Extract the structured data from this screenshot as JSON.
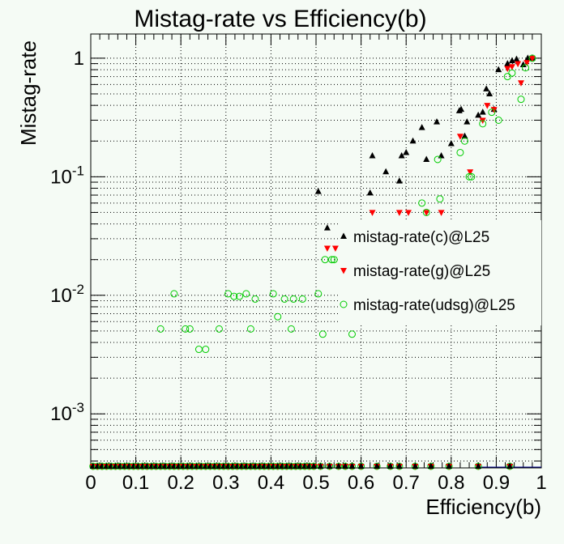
{
  "chart_data": {
    "type": "scatter",
    "title": "Mistag-rate vs Efficiency(b)",
    "xlabel": "Efficiency(b)",
    "ylabel": "Mistag-rate",
    "xlim": [
      0,
      1
    ],
    "ylim": [
      0.00035,
      1.6
    ],
    "yscale": "log",
    "grid": true,
    "legend_position": "right-middle",
    "x_ticks": [
      "0",
      "0.1",
      "0.2",
      "0.3",
      "0.4",
      "0.5",
      "0.6",
      "0.7",
      "0.8",
      "0.9",
      "1"
    ],
    "x_tick_values": [
      0,
      0.1,
      0.2,
      0.3,
      0.4,
      0.5,
      0.6,
      0.7,
      0.8,
      0.9,
      1
    ],
    "y_ticks": [
      {
        "value": 1,
        "base": "1",
        "exp": ""
      },
      {
        "value": 0.1,
        "base": "10",
        "exp": "-1"
      },
      {
        "value": 0.01,
        "base": "10",
        "exp": "-2"
      },
      {
        "value": 0.001,
        "base": "10",
        "exp": "-3"
      }
    ],
    "series": [
      {
        "name": "mistag-rate(c)@L25",
        "marker": "triangle-up",
        "color": "#000000",
        "x": [
          0.505,
          0.525,
          0.562,
          0.62,
          0.625,
          0.655,
          0.685,
          0.69,
          0.7,
          0.715,
          0.735,
          0.745,
          0.768,
          0.778,
          0.8,
          0.818,
          0.822,
          0.83,
          0.835,
          0.86,
          0.87,
          0.878,
          0.885,
          0.895,
          0.905,
          0.925,
          0.935,
          0.945,
          0.96,
          0.97,
          0.98
        ],
        "y": [
          0.075,
          0.037,
          0.032,
          0.073,
          0.15,
          0.11,
          0.092,
          0.15,
          0.16,
          0.2,
          0.26,
          0.14,
          0.29,
          0.15,
          0.19,
          0.36,
          0.37,
          0.22,
          0.29,
          0.33,
          0.35,
          0.55,
          0.5,
          0.37,
          0.8,
          0.9,
          0.95,
          0.98,
          0.88,
          1.0,
          1.0
        ]
      },
      {
        "name": "mistag-rate(g)@L25",
        "marker": "triangle-down",
        "color": "#ff0000",
        "x": [
          0.525,
          0.543,
          0.625,
          0.685,
          0.705,
          0.745,
          0.778,
          0.82,
          0.842,
          0.87,
          0.88,
          0.895,
          0.925,
          0.935,
          0.948,
          0.955,
          0.968,
          0.98
        ],
        "y": [
          0.025,
          0.025,
          0.05,
          0.05,
          0.05,
          0.05,
          0.05,
          0.22,
          0.11,
          0.3,
          0.4,
          0.37,
          0.82,
          0.85,
          0.9,
          0.62,
          0.92,
          1.0
        ]
      },
      {
        "name": "mistag-rate(udsg)@L25",
        "marker": "circle-open",
        "color": "#00cc00",
        "x": [
          0.155,
          0.185,
          0.21,
          0.22,
          0.24,
          0.255,
          0.285,
          0.305,
          0.318,
          0.33,
          0.345,
          0.355,
          0.365,
          0.405,
          0.415,
          0.43,
          0.445,
          0.45,
          0.47,
          0.505,
          0.515,
          0.52,
          0.535,
          0.54,
          0.58,
          0.735,
          0.745,
          0.77,
          0.775,
          0.82,
          0.83,
          0.84,
          0.845,
          0.87,
          0.89,
          0.905,
          0.925,
          0.935,
          0.955,
          0.965,
          0.98
        ],
        "y": [
          0.0052,
          0.0103,
          0.0052,
          0.0052,
          0.0035,
          0.0035,
          0.0052,
          0.0103,
          0.0098,
          0.0098,
          0.0103,
          0.0052,
          0.0093,
          0.0103,
          0.0066,
          0.0093,
          0.0052,
          0.0093,
          0.0093,
          0.0103,
          0.0047,
          0.02,
          0.02,
          0.02,
          0.0047,
          0.06,
          0.05,
          0.14,
          0.065,
          0.16,
          0.2,
          0.1,
          0.1,
          0.28,
          0.35,
          0.3,
          0.7,
          0.75,
          0.45,
          0.83,
          1.0
        ]
      }
    ],
    "baseline_markers_x": [
      0.005,
      0.015,
      0.025,
      0.035,
      0.045,
      0.055,
      0.065,
      0.075,
      0.085,
      0.095,
      0.105,
      0.115,
      0.125,
      0.135,
      0.145,
      0.155,
      0.165,
      0.175,
      0.185,
      0.195,
      0.205,
      0.215,
      0.225,
      0.235,
      0.245,
      0.255,
      0.265,
      0.275,
      0.285,
      0.295,
      0.305,
      0.315,
      0.325,
      0.335,
      0.345,
      0.355,
      0.365,
      0.375,
      0.385,
      0.395,
      0.405,
      0.415,
      0.425,
      0.435,
      0.445,
      0.455,
      0.465,
      0.475,
      0.485,
      0.495,
      0.51,
      0.53,
      0.55,
      0.565,
      0.58,
      0.6,
      0.635,
      0.665,
      0.685,
      0.72,
      0.755,
      0.795,
      0.86,
      0.93
    ]
  }
}
